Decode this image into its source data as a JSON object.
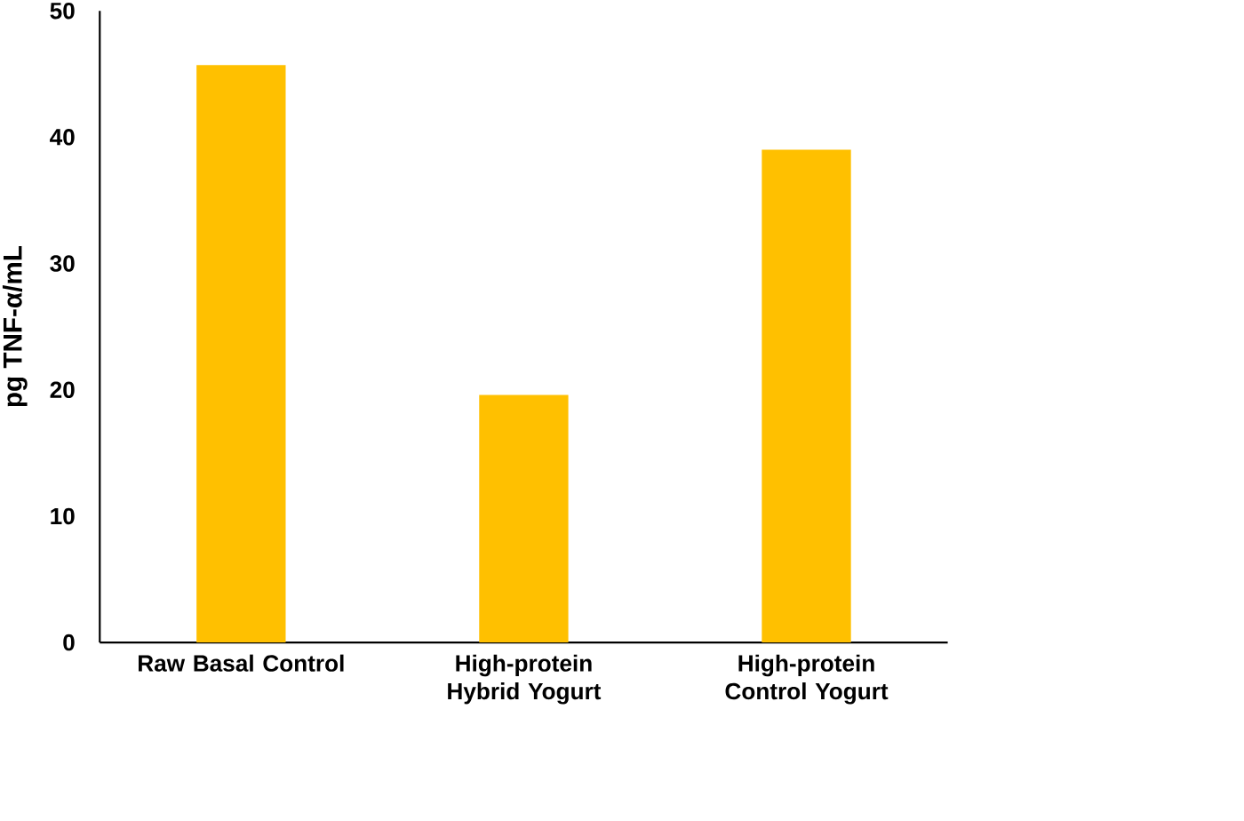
{
  "chart_data": {
    "type": "bar",
    "ylabel": "pg TNF-α/mL",
    "categories": [
      "Raw Basal Control",
      "High-protein Hybrid Yogurt",
      "High-protein Control Yogurt"
    ],
    "values": [
      45.7,
      19.6,
      39.0
    ],
    "color": "#ffc000",
    "ylim": [
      0,
      50
    ],
    "yticks": [
      0,
      10,
      20,
      30,
      40,
      50
    ],
    "grid": false
  }
}
